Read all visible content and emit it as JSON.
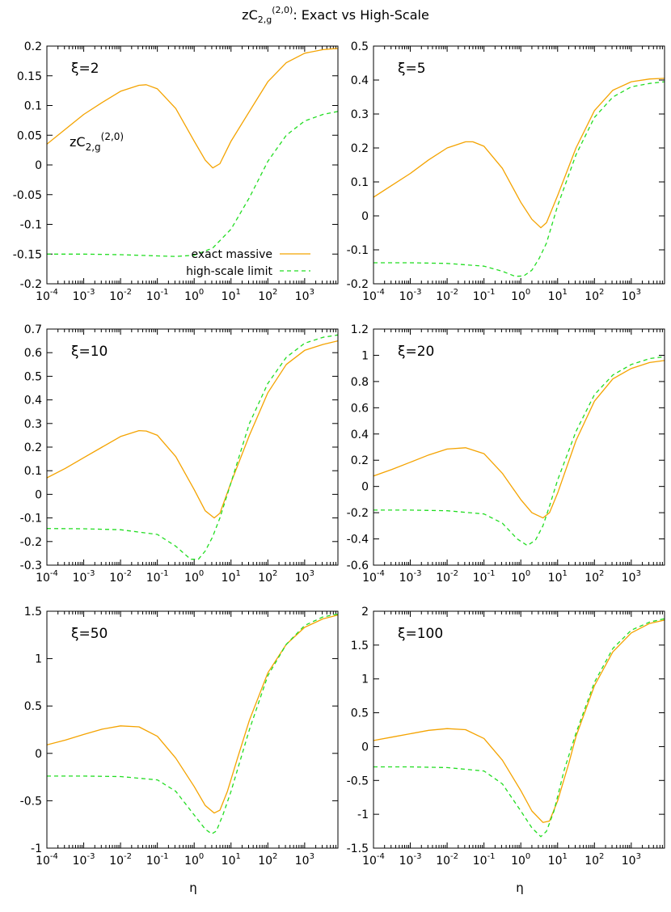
{
  "figure": {
    "title_main": "zC",
    "title_sub": "2,g",
    "title_sup": "(2,0)",
    "title_rest": ": Exact vs High-Scale",
    "ylabel_main": "zC",
    "ylabel_sub": "2,g",
    "ylabel_sup": "(2,0)",
    "xlabel": "η",
    "legend": [
      "exact massive",
      "high-scale limit"
    ],
    "colors": {
      "exact": "#f4a300",
      "high_scale": "#22dd22"
    }
  },
  "chart_data": [
    {
      "type": "line",
      "panel_label": "ξ=2",
      "xscale": "log",
      "xlim": [
        0.0001,
        8000
      ],
      "ylim": [
        -0.2,
        0.2
      ],
      "yticks": [
        "0.2",
        "0.15",
        "0.1",
        "0.05",
        "0",
        "-0.05",
        "-0.1",
        "-0.15",
        "-0.2"
      ],
      "xticks": [
        {
          "b": "10",
          "e": "-4"
        },
        {
          "b": "10",
          "e": "-3"
        },
        {
          "b": "10",
          "e": "-2"
        },
        {
          "b": "10",
          "e": "-1"
        },
        {
          "b": "10",
          "e": "0"
        },
        {
          "b": "10",
          "e": "1"
        },
        {
          "b": "10",
          "e": "2"
        },
        {
          "b": "10",
          "e": "3"
        }
      ],
      "series": [
        {
          "name": "exact massive",
          "style": "solid",
          "x": [
            0.0001,
            0.000316,
            0.001,
            0.00316,
            0.01,
            0.0316,
            0.05,
            0.1,
            0.316,
            1,
            2,
            3.2,
            5,
            10,
            31.6,
            100,
            316,
            1000,
            3160,
            8000
          ],
          "y": [
            0.035,
            0.06,
            0.085,
            0.105,
            0.124,
            0.134,
            0.135,
            0.128,
            0.095,
            0.04,
            0.008,
            -0.005,
            0.002,
            0.04,
            0.09,
            0.14,
            0.172,
            0.188,
            0.194,
            0.196
          ]
        },
        {
          "name": "high-scale limit",
          "style": "dashed",
          "x": [
            0.0001,
            0.001,
            0.01,
            0.1,
            0.316,
            1,
            3.16,
            10,
            31.6,
            100,
            316,
            1000,
            3160,
            8000
          ],
          "y": [
            -0.15,
            -0.15,
            -0.151,
            -0.153,
            -0.154,
            -0.152,
            -0.14,
            -0.108,
            -0.055,
            0.006,
            0.05,
            0.074,
            0.085,
            0.09
          ]
        }
      ]
    },
    {
      "type": "line",
      "panel_label": "ξ=5",
      "xscale": "log",
      "xlim": [
        0.0001,
        8000
      ],
      "ylim": [
        -0.2,
        0.5
      ],
      "yticks": [
        "0.5",
        "0.4",
        "0.3",
        "0.2",
        "0.1",
        "0",
        "-0.1",
        "-0.2"
      ],
      "xticks": [
        {
          "b": "10",
          "e": "-4"
        },
        {
          "b": "10",
          "e": "-3"
        },
        {
          "b": "10",
          "e": "-2"
        },
        {
          "b": "10",
          "e": "-1"
        },
        {
          "b": "10",
          "e": "0"
        },
        {
          "b": "10",
          "e": "1"
        },
        {
          "b": "10",
          "e": "2"
        },
        {
          "b": "10",
          "e": "3"
        }
      ],
      "series": [
        {
          "name": "exact massive",
          "style": "solid",
          "x": [
            0.0001,
            0.000316,
            0.001,
            0.00316,
            0.01,
            0.0316,
            0.05,
            0.1,
            0.316,
            1,
            2,
            3.5,
            5,
            10,
            31.6,
            100,
            316,
            1000,
            3160,
            8000
          ],
          "y": [
            0.055,
            0.09,
            0.125,
            0.165,
            0.2,
            0.218,
            0.218,
            0.205,
            0.14,
            0.04,
            -0.01,
            -0.035,
            -0.02,
            0.06,
            0.2,
            0.31,
            0.37,
            0.395,
            0.403,
            0.405
          ]
        },
        {
          "name": "high-scale limit",
          "style": "dashed",
          "x": [
            0.0001,
            0.001,
            0.01,
            0.1,
            0.316,
            0.7,
            1.2,
            2,
            3.16,
            5,
            10,
            31.6,
            100,
            316,
            1000,
            3160,
            8000
          ],
          "y": [
            -0.138,
            -0.138,
            -0.14,
            -0.148,
            -0.163,
            -0.178,
            -0.177,
            -0.16,
            -0.125,
            -0.08,
            0.03,
            0.18,
            0.29,
            0.35,
            0.38,
            0.39,
            0.395
          ]
        }
      ]
    },
    {
      "type": "line",
      "panel_label": "ξ=10",
      "xscale": "log",
      "xlim": [
        0.0001,
        8000
      ],
      "ylim": [
        -0.3,
        0.7
      ],
      "yticks": [
        "0.7",
        "0.6",
        "0.5",
        "0.4",
        "0.3",
        "0.2",
        "0.1",
        "0",
        "-0.1",
        "-0.2",
        "-0.3"
      ],
      "xticks": [
        {
          "b": "10",
          "e": "-4"
        },
        {
          "b": "10",
          "e": "-3"
        },
        {
          "b": "10",
          "e": "-2"
        },
        {
          "b": "10",
          "e": "-1"
        },
        {
          "b": "10",
          "e": "0"
        },
        {
          "b": "10",
          "e": "1"
        },
        {
          "b": "10",
          "e": "2"
        },
        {
          "b": "10",
          "e": "3"
        }
      ],
      "series": [
        {
          "name": "exact massive",
          "style": "solid",
          "x": [
            0.0001,
            0.000316,
            0.001,
            0.00316,
            0.01,
            0.0316,
            0.05,
            0.1,
            0.316,
            1,
            2,
            3.5,
            5,
            10,
            31.6,
            100,
            316,
            1000,
            3160,
            8000
          ],
          "y": [
            0.07,
            0.11,
            0.155,
            0.2,
            0.245,
            0.27,
            0.268,
            0.25,
            0.16,
            0.02,
            -0.07,
            -0.1,
            -0.08,
            0.05,
            0.25,
            0.43,
            0.55,
            0.61,
            0.635,
            0.65
          ]
        },
        {
          "name": "high-scale limit",
          "style": "dashed",
          "x": [
            0.0001,
            0.001,
            0.01,
            0.1,
            0.316,
            0.8,
            1.3,
            2,
            3.16,
            5,
            10,
            31.6,
            100,
            316,
            1000,
            3160,
            8000
          ],
          "y": [
            -0.145,
            -0.146,
            -0.15,
            -0.17,
            -0.22,
            -0.275,
            -0.275,
            -0.24,
            -0.18,
            -0.1,
            0.05,
            0.3,
            0.47,
            0.58,
            0.64,
            0.665,
            0.675
          ]
        }
      ]
    },
    {
      "type": "line",
      "panel_label": "ξ=20",
      "xscale": "log",
      "xlim": [
        0.0001,
        8000
      ],
      "ylim": [
        -0.6,
        1.2
      ],
      "yticks": [
        "1.2",
        "1",
        "0.8",
        "0.6",
        "0.4",
        "0.2",
        "0",
        "-0.2",
        "-0.4",
        "-0.6"
      ],
      "xticks": [
        {
          "b": "10",
          "e": "-4"
        },
        {
          "b": "10",
          "e": "-3"
        },
        {
          "b": "10",
          "e": "-2"
        },
        {
          "b": "10",
          "e": "-1"
        },
        {
          "b": "10",
          "e": "0"
        },
        {
          "b": "10",
          "e": "1"
        },
        {
          "b": "10",
          "e": "2"
        },
        {
          "b": "10",
          "e": "3"
        }
      ],
      "series": [
        {
          "name": "exact massive",
          "style": "solid",
          "x": [
            0.0001,
            0.000316,
            0.001,
            0.00316,
            0.01,
            0.0316,
            0.1,
            0.316,
            1,
            2,
            4,
            6,
            10,
            31.6,
            100,
            316,
            1000,
            3160,
            8000
          ],
          "y": [
            0.08,
            0.13,
            0.185,
            0.24,
            0.285,
            0.295,
            0.25,
            0.1,
            -0.1,
            -0.2,
            -0.24,
            -0.2,
            -0.05,
            0.35,
            0.65,
            0.82,
            0.9,
            0.945,
            0.96
          ]
        },
        {
          "name": "high-scale limit",
          "style": "dashed",
          "x": [
            0.0001,
            0.001,
            0.01,
            0.1,
            0.316,
            0.8,
            1.5,
            2.5,
            4,
            6,
            10,
            31.6,
            100,
            316,
            1000,
            3160,
            8000
          ],
          "y": [
            -0.18,
            -0.18,
            -0.185,
            -0.21,
            -0.28,
            -0.4,
            -0.45,
            -0.41,
            -0.3,
            -0.15,
            0.05,
            0.42,
            0.7,
            0.85,
            0.93,
            0.975,
            0.99
          ]
        }
      ]
    },
    {
      "type": "line",
      "panel_label": "ξ=50",
      "xscale": "log",
      "xlim": [
        0.0001,
        8000
      ],
      "ylim": [
        -1,
        1.5
      ],
      "yticks": [
        "1.5",
        "1",
        "0.5",
        "0",
        "-0.5",
        "-1"
      ],
      "xticks": [
        {
          "b": "10",
          "e": "-4"
        },
        {
          "b": "10",
          "e": "-3"
        },
        {
          "b": "10",
          "e": "-2"
        },
        {
          "b": "10",
          "e": "-1"
        },
        {
          "b": "10",
          "e": "0"
        },
        {
          "b": "10",
          "e": "1"
        },
        {
          "b": "10",
          "e": "2"
        },
        {
          "b": "10",
          "e": "3"
        }
      ],
      "series": [
        {
          "name": "exact massive",
          "style": "solid",
          "x": [
            0.0001,
            0.000316,
            0.001,
            0.00316,
            0.01,
            0.0316,
            0.1,
            0.316,
            1,
            2,
            3.5,
            5,
            8,
            15,
            31.6,
            100,
            316,
            1000,
            3160,
            8000
          ],
          "y": [
            0.09,
            0.14,
            0.2,
            0.255,
            0.29,
            0.28,
            0.18,
            -0.05,
            -0.35,
            -0.55,
            -0.63,
            -0.6,
            -0.4,
            -0.05,
            0.35,
            0.85,
            1.15,
            1.33,
            1.42,
            1.46
          ]
        },
        {
          "name": "high-scale limit",
          "style": "dashed",
          "x": [
            0.0001,
            0.001,
            0.01,
            0.1,
            0.316,
            1,
            2,
            3,
            4,
            6,
            10,
            31.6,
            100,
            316,
            1000,
            3160,
            8000
          ],
          "y": [
            -0.24,
            -0.24,
            -0.245,
            -0.28,
            -0.4,
            -0.65,
            -0.8,
            -0.85,
            -0.82,
            -0.65,
            -0.4,
            0.25,
            0.82,
            1.15,
            1.35,
            1.44,
            1.47
          ]
        }
      ]
    },
    {
      "type": "line",
      "panel_label": "ξ=100",
      "xscale": "log",
      "xlim": [
        0.0001,
        8000
      ],
      "ylim": [
        -1.5,
        2
      ],
      "yticks": [
        "2",
        "1.5",
        "1",
        "0.5",
        "0",
        "-0.5",
        "-1",
        "-1.5"
      ],
      "xticks": [
        {
          "b": "10",
          "e": "-4"
        },
        {
          "b": "10",
          "e": "-3"
        },
        {
          "b": "10",
          "e": "-2"
        },
        {
          "b": "10",
          "e": "-1"
        },
        {
          "b": "10",
          "e": "0"
        },
        {
          "b": "10",
          "e": "1"
        },
        {
          "b": "10",
          "e": "2"
        },
        {
          "b": "10",
          "e": "3"
        }
      ],
      "series": [
        {
          "name": "exact massive",
          "style": "solid",
          "x": [
            0.0001,
            0.000316,
            0.001,
            0.00316,
            0.01,
            0.0316,
            0.1,
            0.316,
            1,
            2,
            4,
            6,
            10,
            20,
            31.6,
            100,
            316,
            1000,
            3160,
            8000
          ],
          "y": [
            0.09,
            0.14,
            0.19,
            0.24,
            0.265,
            0.25,
            0.12,
            -0.2,
            -0.65,
            -0.95,
            -1.12,
            -1.1,
            -0.8,
            -0.25,
            0.15,
            0.9,
            1.4,
            1.68,
            1.82,
            1.87
          ]
        },
        {
          "name": "high-scale limit",
          "style": "dashed",
          "x": [
            0.0001,
            0.001,
            0.01,
            0.1,
            0.316,
            1,
            2,
            3.5,
            5,
            8,
            15,
            31.6,
            100,
            316,
            1000,
            3160,
            8000
          ],
          "y": [
            -0.3,
            -0.3,
            -0.31,
            -0.36,
            -0.55,
            -0.95,
            -1.2,
            -1.33,
            -1.25,
            -0.95,
            -0.35,
            0.2,
            0.95,
            1.45,
            1.72,
            1.84,
            1.89
          ]
        }
      ]
    }
  ]
}
